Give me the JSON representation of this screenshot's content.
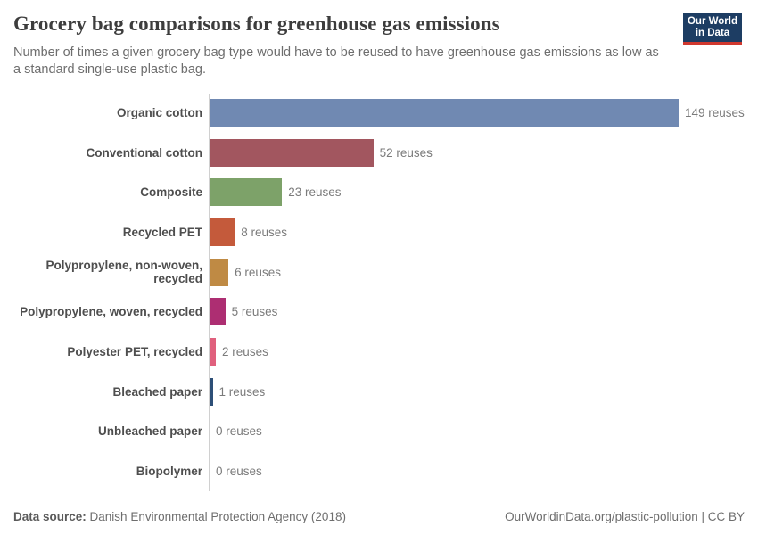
{
  "header": {
    "title": "Grocery bag comparisons for greenhouse gas emissions",
    "subtitle": "Number of times a given grocery bag type would have to be reused to have greenhouse gas emissions as low as a standard single-use plastic bag.",
    "logo": {
      "line1": "Our World",
      "line2": "in Data",
      "background": "#1d3d63",
      "accent": "#d0382e"
    }
  },
  "chart_data": {
    "type": "bar",
    "orientation": "horizontal",
    "unit": "reuses",
    "title": "Grocery bag comparisons for greenhouse gas emissions",
    "categories": [
      "Organic cotton",
      "Conventional cotton",
      "Composite",
      "Recycled PET",
      "Polypropylene, non-woven, recycled",
      "Polypropylene, woven, recycled",
      "Polyester PET, recycled",
      "Bleached paper",
      "Unbleached paper",
      "Biopolymer"
    ],
    "values": [
      149,
      52,
      23,
      8,
      6,
      5,
      2,
      1,
      0,
      0
    ],
    "value_labels": [
      "149 reuses",
      "52 reuses",
      "23 reuses",
      "8 reuses",
      "6 reuses",
      "5 reuses",
      "2 reuses",
      "1 reuses",
      "0 reuses",
      "0 reuses"
    ],
    "bar_colors": [
      "#7089b2",
      "#a2565f",
      "#7da269",
      "#c45a3b",
      "#bf8a44",
      "#ad2e72",
      "#e0607d",
      "#2d4f77",
      "#999999",
      "#999999"
    ],
    "xlim": [
      0,
      149
    ],
    "grid": false,
    "legend": false,
    "axis_line_color": "#d0d0d0"
  },
  "footer": {
    "datasource_label": "Data source:",
    "datasource_value": "Danish Environmental Protection Agency (2018)",
    "attribution": "OurWorldinData.org/plastic-pollution | CC BY"
  }
}
